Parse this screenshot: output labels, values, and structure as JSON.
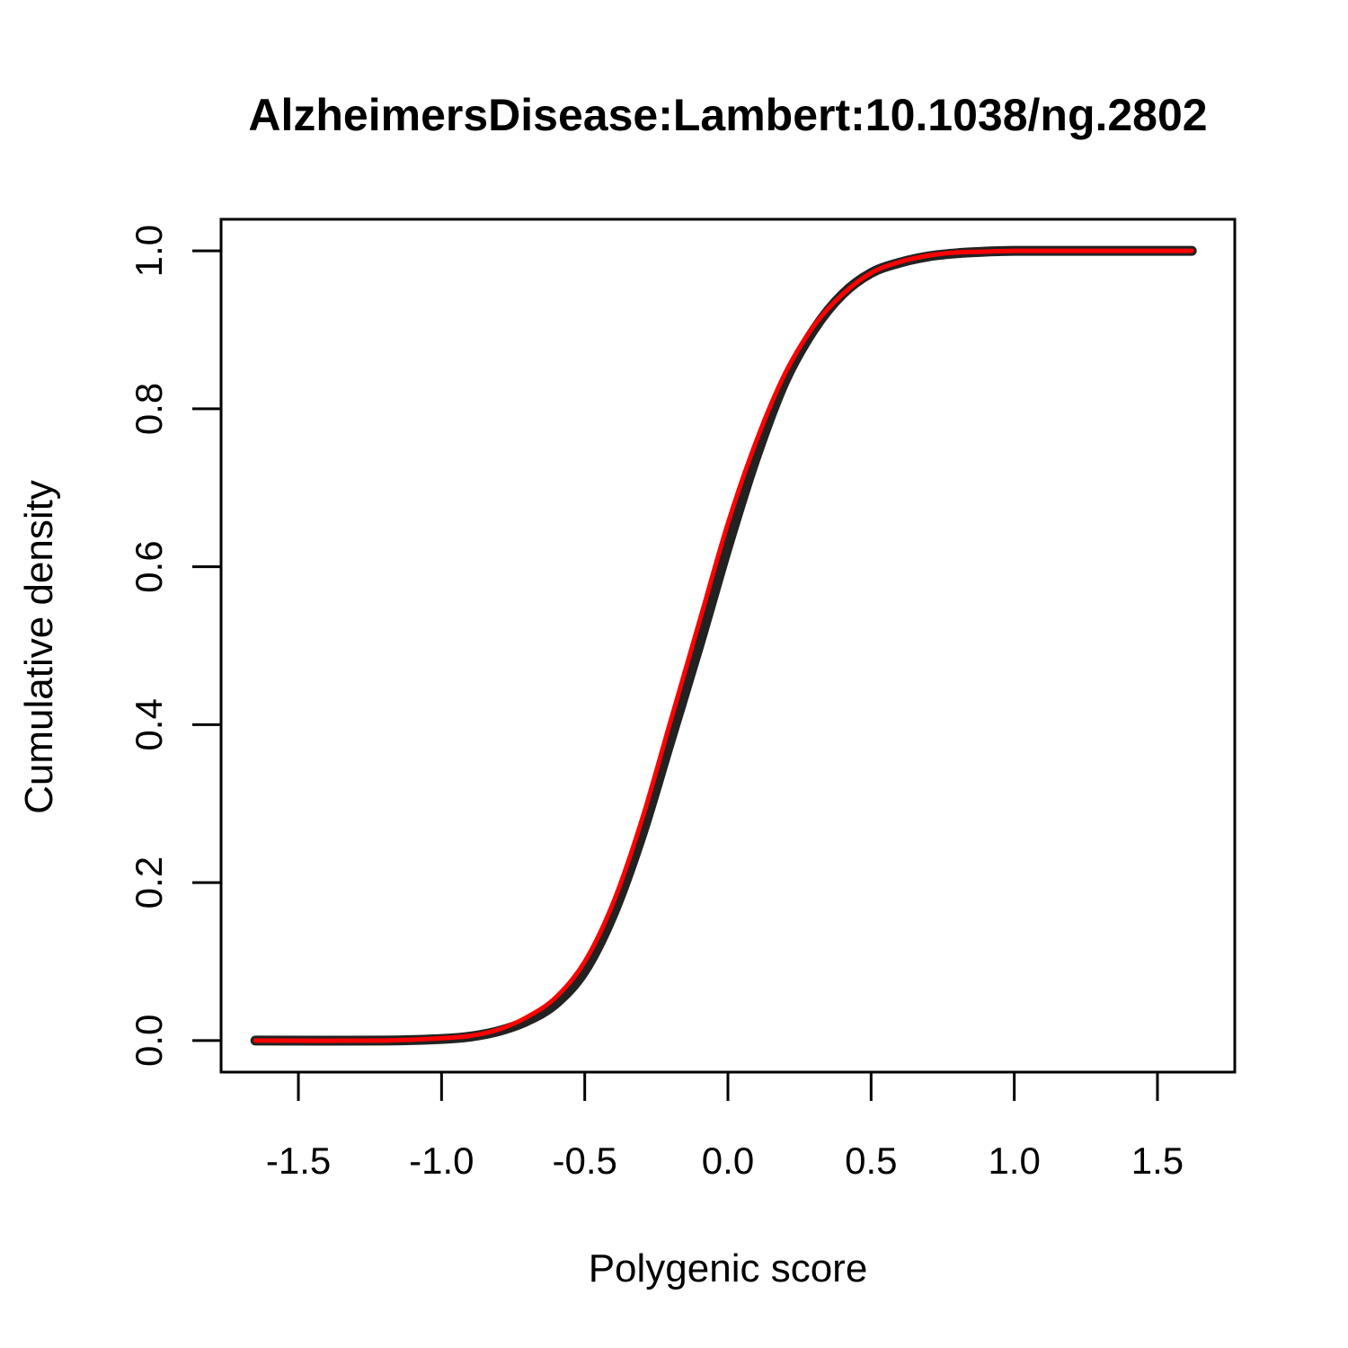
{
  "chart_data": {
    "type": "line",
    "title": "AlzheimersDisease:Lambert:10.1038/ng.2802",
    "xlabel": "Polygenic score",
    "ylabel": "Cumulative density",
    "xlim": [
      -1.77,
      1.77
    ],
    "ylim": [
      -0.04,
      1.04
    ],
    "x_ticks": [
      -1.5,
      -1.0,
      -0.5,
      0.0,
      0.5,
      1.0,
      1.5
    ],
    "x_tick_labels": [
      "-1.5",
      "-1.0",
      "-0.5",
      "0.0",
      "0.5",
      "1.0",
      "1.5"
    ],
    "y_ticks": [
      0.0,
      0.2,
      0.4,
      0.6,
      0.8,
      1.0
    ],
    "y_tick_labels": [
      "0.0",
      "0.2",
      "0.4",
      "0.6",
      "0.8",
      "1.0"
    ],
    "grid": false,
    "series": [
      {
        "color": "#222222",
        "x": [
          -1.65,
          -1.2,
          -1.0,
          -0.9,
          -0.8,
          -0.7,
          -0.6,
          -0.5,
          -0.4,
          -0.3,
          -0.2,
          -0.1,
          0.0,
          0.1,
          0.2,
          0.3,
          0.4,
          0.5,
          0.6,
          0.7,
          0.8,
          0.9,
          1.0,
          1.2,
          1.62
        ],
        "y": [
          0.0,
          0.0,
          0.002,
          0.005,
          0.012,
          0.025,
          0.047,
          0.088,
          0.16,
          0.26,
          0.38,
          0.5,
          0.625,
          0.74,
          0.835,
          0.9,
          0.945,
          0.972,
          0.985,
          0.993,
          0.997,
          0.999,
          1.0,
          1.0,
          1.0
        ]
      },
      {
        "color": "#ff0000",
        "x": [
          -1.65,
          -1.2,
          -1.0,
          -0.9,
          -0.8,
          -0.7,
          -0.6,
          -0.5,
          -0.4,
          -0.3,
          -0.2,
          -0.1,
          0.0,
          0.1,
          0.2,
          0.3,
          0.4,
          0.5,
          0.6,
          0.7,
          0.8,
          0.9,
          1.0,
          1.2,
          1.62
        ],
        "y": [
          0.0,
          0.0,
          0.003,
          0.006,
          0.014,
          0.03,
          0.055,
          0.1,
          0.175,
          0.28,
          0.405,
          0.53,
          0.655,
          0.76,
          0.845,
          0.905,
          0.945,
          0.972,
          0.986,
          0.994,
          0.998,
          0.999,
          1.0,
          1.0,
          1.0
        ]
      }
    ]
  }
}
